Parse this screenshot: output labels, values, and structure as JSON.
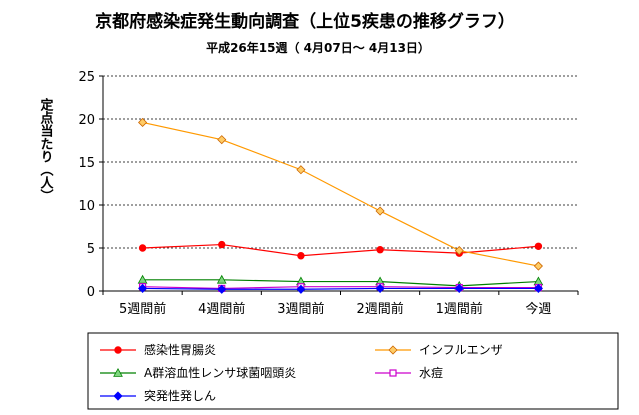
{
  "chart_data": {
    "type": "line",
    "title": "京都府感染症発生動向調査（上位5疾患の推移グラフ）",
    "subtitle": "平成26年15週（ 4月07日～ 4月13日）",
    "ylabel": "定点当たり（人）",
    "ylim": [
      0,
      25
    ],
    "yticks": [
      "0",
      "5",
      "10",
      "15",
      "20",
      "25"
    ],
    "grid": true,
    "categories": [
      "5週間前",
      "4週間前",
      "3週間前",
      "2週間前",
      "1週間前",
      "今週"
    ],
    "series": [
      {
        "name": "感染性胃腸炎",
        "color": "#ff0000",
        "marker": "circle",
        "values": [
          5.0,
          5.4,
          4.1,
          4.8,
          4.4,
          5.2
        ]
      },
      {
        "name": "インフルエンザ",
        "color": "#ff9900",
        "marker": "diamond",
        "values": [
          19.6,
          17.6,
          14.1,
          9.3,
          4.7,
          2.9
        ]
      },
      {
        "name": "A群溶血性レンサ球菌咽頭炎",
        "color": "#008000",
        "marker": "triangle",
        "values": [
          1.3,
          1.3,
          1.1,
          1.1,
          0.6,
          1.1
        ]
      },
      {
        "name": "水痘",
        "color": "#cc00cc",
        "marker": "square",
        "values": [
          0.5,
          0.3,
          0.5,
          0.5,
          0.4,
          0.4
        ]
      },
      {
        "name": "突発性発しん",
        "color": "#0000ff",
        "marker": "diamond",
        "values": [
          0.3,
          0.2,
          0.2,
          0.3,
          0.3,
          0.3
        ]
      }
    ],
    "legend_position": "bottom"
  }
}
